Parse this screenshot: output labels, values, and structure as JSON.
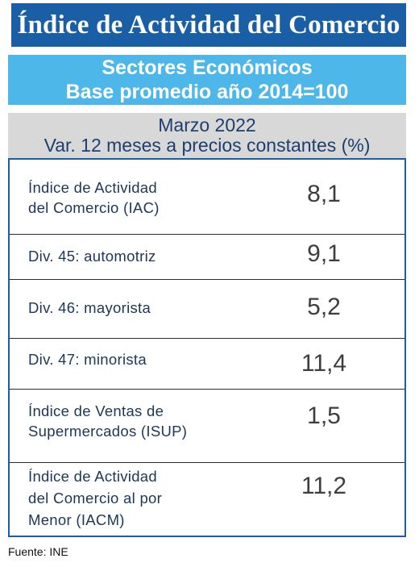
{
  "header": {
    "title": "Índice de Actividad del Comercio",
    "subtitle_line1": "Sectores Económicos",
    "subtitle_line2": "Base promedio año 2014=100",
    "period_line1": "Marzo 2022",
    "period_line2": "Var. 12 meses a precios constantes (%)"
  },
  "rows": [
    {
      "label_line1": "Índice de Actividad",
      "label_line2": "del Comercio (IAC)",
      "label_line3": "",
      "value": "8,1"
    },
    {
      "label_line1": "Div. 45: automotriz",
      "label_line2": "",
      "label_line3": "",
      "value": "9,1"
    },
    {
      "label_line1": "Div. 46: mayorista",
      "label_line2": "",
      "label_line3": "",
      "value": "5,2"
    },
    {
      "label_line1": "Div. 47: minorista",
      "label_line2": "",
      "label_line3": "",
      "value": "11,4"
    },
    {
      "label_line1": "Índice de Ventas de",
      "label_line2": "Supermercados (ISUP)",
      "label_line3": "",
      "value": "1,5"
    },
    {
      "label_line1": "Índice de Actividad",
      "label_line2": "del Comercio al por",
      "label_line3": "Menor (IACM)",
      "value": "11,2"
    }
  ],
  "footer": {
    "source": "Fuente: INE"
  },
  "colors": {
    "title_bg": "#1a5fa6",
    "subtitle_bg": "#4db7e9",
    "period_bg": "#d8d8d8",
    "table_border": "#1a5fa6"
  }
}
